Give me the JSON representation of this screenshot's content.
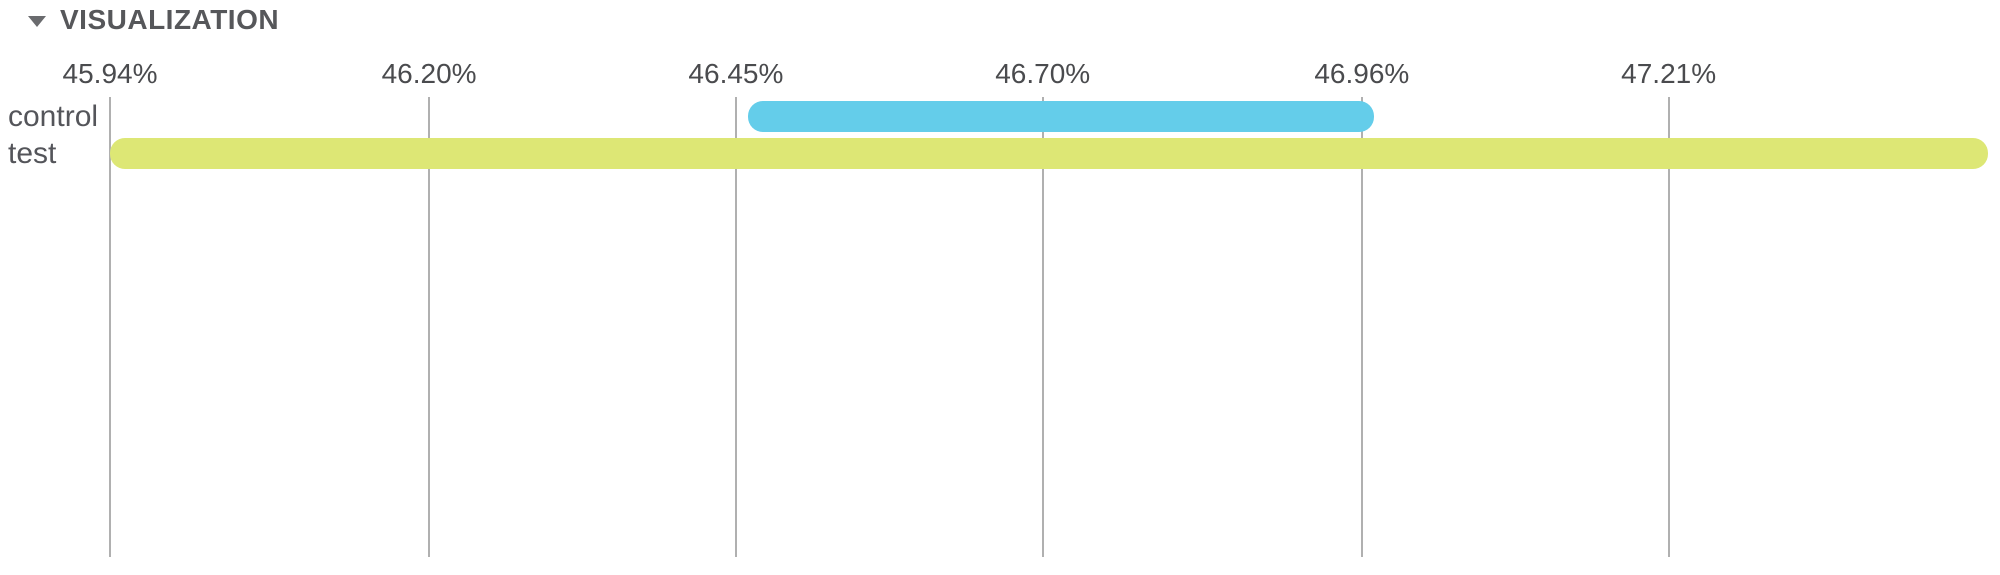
{
  "header": {
    "title": "VISUALIZATION",
    "collapse_icon": "caret-down-icon",
    "state": "expanded"
  },
  "colors": {
    "control_bar": "#64cdea",
    "test_bar": "#dde775",
    "gridline": "#b0b0b0",
    "title_text": "#56575a",
    "axis_text": "#4a4b4e",
    "row_label_text": "#54555a",
    "background": "#ffffff"
  },
  "chart_data": {
    "type": "bar",
    "orientation": "horizontal-range",
    "title": "",
    "xlabel": "",
    "ylabel": "",
    "unit": "%",
    "legend": "none",
    "axis": {
      "position": "top",
      "min": 45.94,
      "max": 47.48,
      "grid": true,
      "ticks": [
        {
          "value": 45.94,
          "label": "45.94%"
        },
        {
          "value": 46.2,
          "label": "46.20%"
        },
        {
          "value": 46.45,
          "label": "46.45%"
        },
        {
          "value": 46.7,
          "label": "46.70%"
        },
        {
          "value": 46.96,
          "label": "46.96%"
        },
        {
          "value": 47.21,
          "label": "47.21%"
        }
      ]
    },
    "categories": [
      "control",
      "test"
    ],
    "bars": [
      {
        "label": "control",
        "start": 46.46,
        "end": 46.97,
        "color": "#64cdea"
      },
      {
        "label": "test",
        "start": 45.94,
        "end": 47.47,
        "color": "#dde775"
      }
    ]
  }
}
